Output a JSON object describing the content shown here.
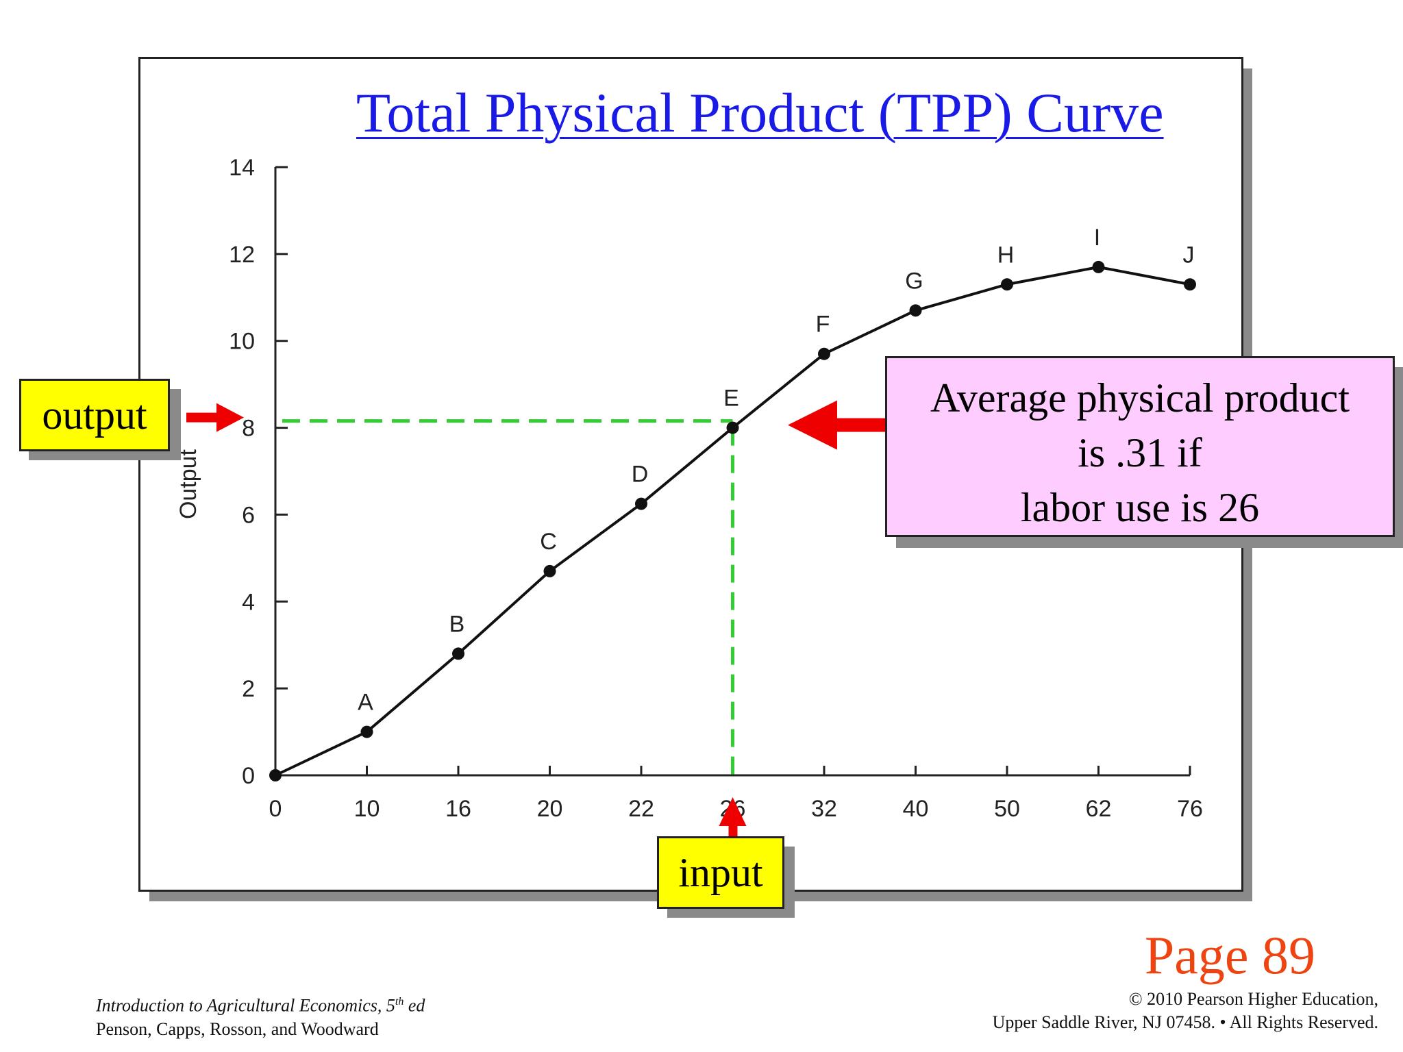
{
  "chart_data": {
    "type": "line",
    "title": "Total Physical Product (TPP) Curve",
    "ylabel": "Output",
    "categories": [
      "0",
      "10",
      "16",
      "20",
      "22",
      "26",
      "32",
      "40",
      "50",
      "62",
      "76"
    ],
    "points": [
      {
        "label": "",
        "y": 0
      },
      {
        "label": "A",
        "y": 1
      },
      {
        "label": "B",
        "y": 2.8
      },
      {
        "label": "C",
        "y": 4.7
      },
      {
        "label": "D",
        "y": 6.25
      },
      {
        "label": "E",
        "y": 8
      },
      {
        "label": "F",
        "y": 9.7
      },
      {
        "label": "G",
        "y": 10.7
      },
      {
        "label": "H",
        "y": 11.3
      },
      {
        "label": "I",
        "y": 11.7
      },
      {
        "label": "J",
        "y": 11.3
      }
    ],
    "yticks": [
      0,
      2,
      4,
      6,
      8,
      10,
      12,
      14
    ],
    "ylim": [
      0,
      14
    ],
    "highlight": {
      "x_category": "26",
      "y": 8
    },
    "grid": false
  },
  "annotations": {
    "output_label": "output",
    "input_label": "input",
    "callout_lines": [
      "Average physical product",
      "is .31 if",
      "labor use is 26"
    ]
  },
  "colors": {
    "title": "#1a1ae6",
    "dashed_guide": "#33cc33",
    "arrow": "#ee0000",
    "label_box": "#ffff00",
    "callout_box": "#ffccff",
    "page_number": "#ee4411"
  },
  "page_number": "Page 89",
  "footer": {
    "book_title": "Introduction to Agricultural Economics, 5",
    "edition_sup": "th",
    "edition_suffix": " ed",
    "authors": "Penson, Capps, Rosson, and Woodward",
    "copyright_line1": "© 2010 Pearson Higher Education,",
    "copyright_line2": "Upper Saddle River, NJ 07458. • All Rights Reserved."
  }
}
